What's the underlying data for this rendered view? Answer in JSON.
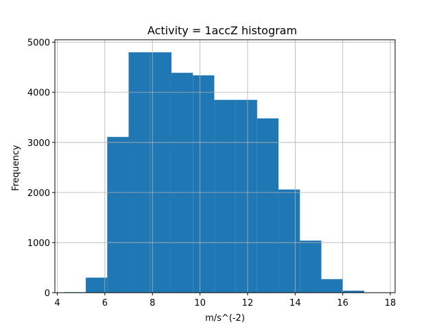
{
  "chart_data": {
    "type": "bar",
    "title": "Activity = 1accZ histogram",
    "xlabel": "m/s^(-2)",
    "ylabel": "Frequency",
    "xlim": [
      3.9,
      18.2
    ],
    "ylim": [
      0,
      5050
    ],
    "xticks": [
      4,
      6,
      8,
      10,
      12,
      14,
      16,
      18
    ],
    "yticks": [
      0,
      1000,
      2000,
      3000,
      4000,
      5000
    ],
    "grid": true,
    "bar_color": "#1f77b4",
    "bins": [
      {
        "x0": 4.3,
        "x1": 5.2,
        "value": 10
      },
      {
        "x0": 5.2,
        "x1": 6.1,
        "value": 300
      },
      {
        "x0": 6.1,
        "x1": 7.0,
        "value": 3110
      },
      {
        "x0": 7.0,
        "x1": 7.9,
        "value": 4800
      },
      {
        "x0": 7.9,
        "x1": 8.8,
        "value": 4800
      },
      {
        "x0": 8.8,
        "x1": 9.7,
        "value": 4390
      },
      {
        "x0": 9.7,
        "x1": 10.6,
        "value": 4340
      },
      {
        "x0": 10.6,
        "x1": 11.5,
        "value": 3850
      },
      {
        "x0": 11.5,
        "x1": 12.4,
        "value": 3850
      },
      {
        "x0": 12.4,
        "x1": 13.3,
        "value": 3480
      },
      {
        "x0": 13.3,
        "x1": 14.2,
        "value": 2060
      },
      {
        "x0": 14.2,
        "x1": 15.1,
        "value": 1040
      },
      {
        "x0": 15.1,
        "x1": 16.0,
        "value": 270
      },
      {
        "x0": 16.0,
        "x1": 16.9,
        "value": 40
      },
      {
        "x0": 16.9,
        "x1": 17.8,
        "value": 0
      }
    ]
  }
}
